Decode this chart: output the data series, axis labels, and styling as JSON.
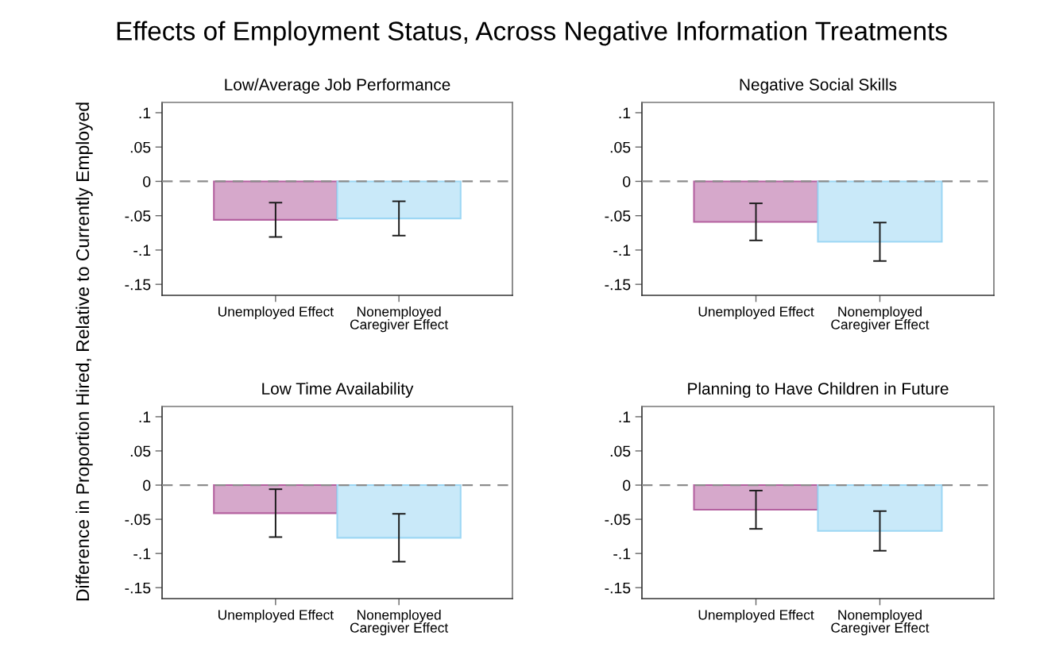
{
  "chart_data": [
    {
      "type": "bar",
      "title": "Low/Average Job Performance",
      "ylabel": "Difference in Proportion Hired, Relative to Currently Employed",
      "annotations": [
        "Effects of Employment Status, Across Negative Information Treatments"
      ],
      "categories": [
        "Unemployed Effect",
        "Nonemployed\nCaregiver Effect"
      ],
      "values": [
        -0.056,
        -0.054
      ],
      "errors": [
        0.025,
        0.025
      ],
      "colors": [
        "#d6a8cb",
        "#c9e9f9"
      ],
      "ylim": [
        -0.166,
        0.115
      ],
      "yticks": [
        {
          "value": 0.1,
          "label": ".1"
        },
        {
          "value": 0.05,
          "label": ".05"
        },
        0,
        {
          "value": -0.05,
          "label": "-.05"
        },
        {
          "value": -0.1,
          "label": "-.1"
        },
        {
          "value": -0.15,
          "label": "-.15"
        }
      ],
      "ref_lines": [
        {
          "axis": "y",
          "value": 0,
          "color": "#8c8c8c",
          "line_style": "dashed"
        }
      ]
    },
    {
      "type": "bar",
      "title": "Negative Social Skills",
      "categories": [
        "Unemployed Effect",
        "Nonemployed\nCaregiver Effect"
      ],
      "values": [
        -0.059,
        -0.088
      ],
      "errors": [
        0.027,
        0.028
      ],
      "colors": [
        "#d6a8cb",
        "#c9e9f9"
      ],
      "ylim": [
        -0.166,
        0.115
      ],
      "yticks": [
        {
          "value": 0.1,
          "label": ".1"
        },
        {
          "value": 0.05,
          "label": ".05"
        },
        0,
        {
          "value": -0.05,
          "label": "-.05"
        },
        {
          "value": -0.1,
          "label": "-.1"
        },
        {
          "value": -0.15,
          "label": "-.15"
        }
      ],
      "ref_lines": [
        {
          "axis": "y",
          "value": 0,
          "color": "#8c8c8c",
          "line_style": "dashed"
        }
      ]
    },
    {
      "type": "bar",
      "title": "Low Time Availability",
      "categories": [
        "Unemployed Effect",
        "Nonemployed\nCaregiver Effect"
      ],
      "values": [
        -0.041,
        -0.077
      ],
      "errors": [
        0.035,
        0.035
      ],
      "colors": [
        "#d6a8cb",
        "#c9e9f9"
      ],
      "ylim": [
        -0.166,
        0.115
      ],
      "yticks": [
        {
          "value": 0.1,
          "label": ".1"
        },
        {
          "value": 0.05,
          "label": ".05"
        },
        0,
        {
          "value": -0.05,
          "label": "-.05"
        },
        {
          "value": -0.1,
          "label": "-.1"
        },
        {
          "value": -0.15,
          "label": "-.15"
        }
      ],
      "ref_lines": [
        {
          "axis": "y",
          "value": 0,
          "color": "#8c8c8c",
          "line_style": "dashed"
        }
      ]
    },
    {
      "type": "bar",
      "title": "Planning to Have Children in Future",
      "categories": [
        "Unemployed Effect",
        "Nonemployed\nCaregiver Effect"
      ],
      "values": [
        -0.036,
        -0.067
      ],
      "errors": [
        0.028,
        0.029
      ],
      "colors": [
        "#d6a8cb",
        "#c9e9f9"
      ],
      "ylim": [
        -0.166,
        0.115
      ],
      "yticks": [
        {
          "value": 0.1,
          "label": ".1"
        },
        {
          "value": 0.05,
          "label": ".05"
        },
        0,
        {
          "value": -0.05,
          "label": "-.05"
        },
        {
          "value": -0.1,
          "label": "-.1"
        },
        {
          "value": -0.15,
          "label": "-.15"
        }
      ],
      "ref_lines": [
        {
          "axis": "y",
          "value": 0,
          "color": "#8c8c8c",
          "line_style": "dashed"
        }
      ]
    }
  ]
}
